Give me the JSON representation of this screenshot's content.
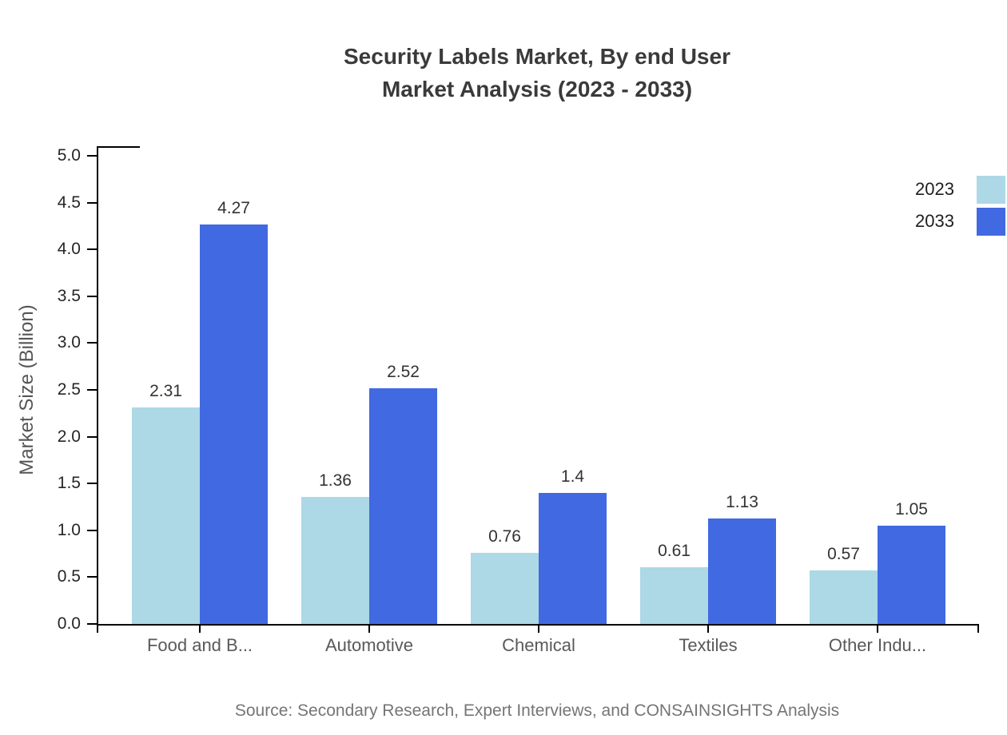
{
  "title": {
    "line1": "Security Labels Market, By end User",
    "line2": "Market Analysis (2023 - 2033)"
  },
  "source": "Source: Secondary Research, Expert Interviews, and CONSAINSIGHTS Analysis",
  "colors": {
    "series_2023": "#ADD8E6",
    "series_2033": "#4169E1",
    "axis": "#000000",
    "title_text": "#3A3A3A",
    "tick_label_text": "#262626",
    "category_text": "#595959",
    "source_text": "#757575"
  },
  "chart_data": {
    "type": "bar",
    "title": "Security Labels Market, By end User Market Analysis (2023 - 2033)",
    "categories": [
      "Food and B...",
      "Automotive",
      "Chemical",
      "Textiles",
      "Other Indu..."
    ],
    "series": [
      {
        "name": "2023",
        "color": "#ADD8E6",
        "values": [
          2.31,
          1.36,
          0.76,
          0.61,
          0.57
        ],
        "labels": [
          "2.31",
          "1.36",
          "0.76",
          "0.61",
          "0.57"
        ]
      },
      {
        "name": "2033",
        "color": "#4169E1",
        "values": [
          4.27,
          2.52,
          1.4,
          1.13,
          1.05
        ],
        "labels": [
          "4.27",
          "2.52",
          "1.4",
          "1.13",
          "1.05"
        ]
      }
    ],
    "xlabel": "",
    "ylabel": "Market Size (Billion)",
    "ylim": [
      0,
      5
    ],
    "yticks": [
      "0.0",
      "0.5",
      "1.0",
      "1.5",
      "2.0",
      "2.5",
      "3.0",
      "3.5",
      "4.0",
      "4.5",
      "5.0"
    ],
    "grid": false,
    "legend_position": "top-right"
  }
}
